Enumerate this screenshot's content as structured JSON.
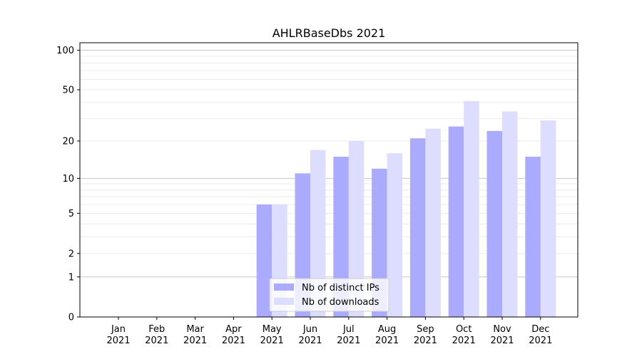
{
  "chart_data": {
    "type": "bar",
    "title": "AHLRBaseDbs 2021",
    "xlabel": "",
    "ylabel": "",
    "yscale": "log10(1+y)",
    "ylim": [
      0,
      114
    ],
    "yticks": [
      0,
      1,
      2,
      5,
      10,
      20,
      50,
      100
    ],
    "grid": true,
    "legend_position": "bottom-center",
    "categories": [
      "Jan\n2021",
      "Feb\n2021",
      "Mar\n2021",
      "Apr\n2021",
      "May\n2021",
      "Jun\n2021",
      "Jul\n2021",
      "Aug\n2021",
      "Sep\n2021",
      "Oct\n2021",
      "Nov\n2021",
      "Dec\n2021"
    ],
    "series": [
      {
        "name": "Nb of distinct IPs",
        "color": "#aaaaff",
        "values": [
          0,
          0,
          0,
          0,
          6,
          11,
          15,
          12,
          21,
          26,
          24,
          15
        ]
      },
      {
        "name": "Nb of downloads",
        "color": "#ddddff",
        "values": [
          0,
          0,
          0,
          0,
          6,
          17,
          20,
          16,
          25,
          41,
          34,
          29
        ]
      }
    ]
  }
}
